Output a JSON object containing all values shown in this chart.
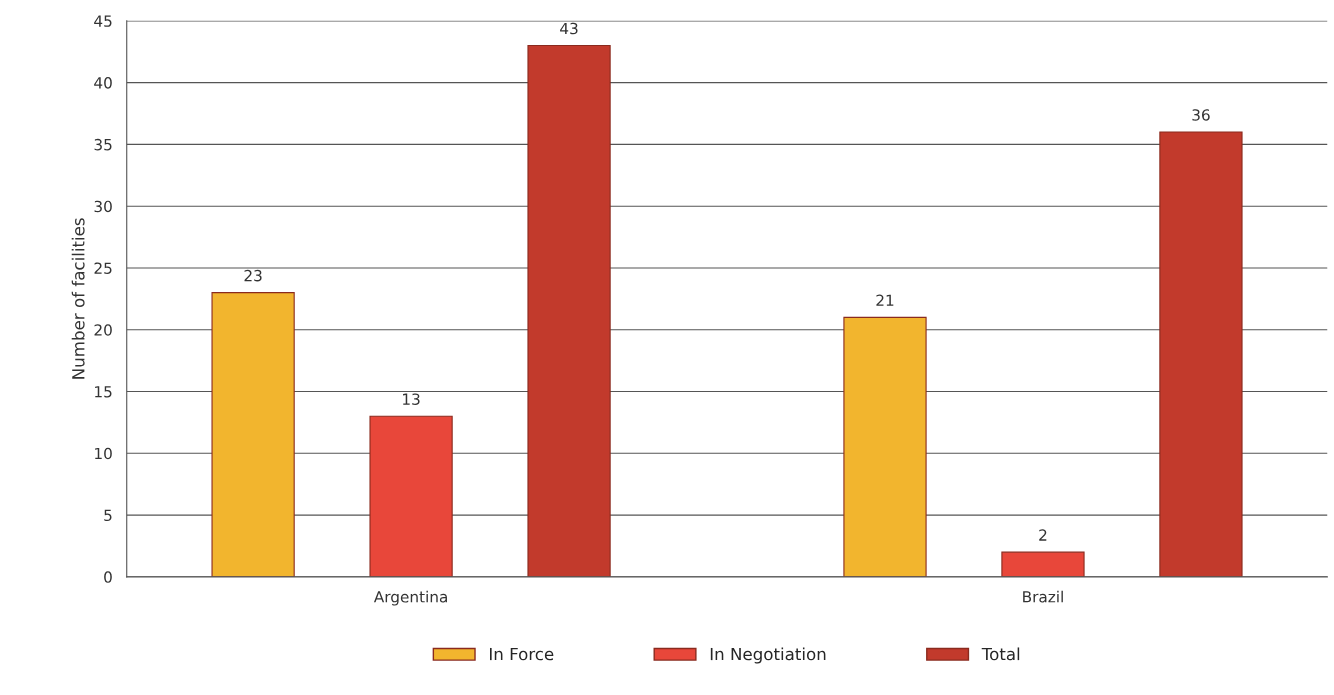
{
  "chart_data": {
    "type": "bar",
    "ylabel": "Number of facilities",
    "categories": [
      "Argentina",
      "Brazil"
    ],
    "series": [
      {
        "name": "In Force",
        "color": "#f2b52e",
        "values": [
          23,
          21
        ]
      },
      {
        "name": "In Negotiation",
        "color": "#e8473a",
        "values": [
          13,
          2
        ]
      },
      {
        "name": "Total",
        "color": "#c23a2c",
        "values": [
          43,
          36
        ]
      }
    ],
    "ylim": [
      0,
      45
    ],
    "yticks": [
      0,
      5,
      10,
      15,
      20,
      25,
      30,
      35,
      40,
      45
    ],
    "grid": "y",
    "legend": "bottom",
    "data_labels": true
  }
}
